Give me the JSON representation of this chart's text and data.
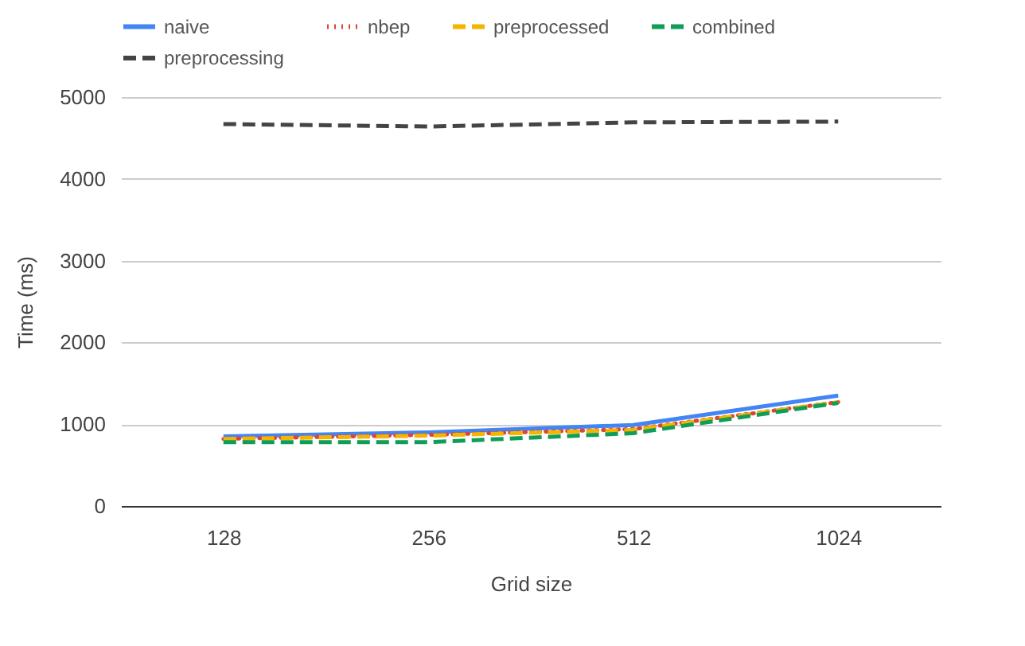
{
  "chart_data": {
    "type": "line",
    "xlabel": "Grid size",
    "ylabel": "Time (ms)",
    "categories": [
      "128",
      "256",
      "512",
      "1024"
    ],
    "series": [
      {
        "name": "naive",
        "color": "#4285f4",
        "line_style": "solid",
        "values": [
          850,
          900,
          990,
          1350
        ]
      },
      {
        "name": "nbep",
        "color": "#db4437",
        "line_style": "dotted",
        "values": [
          820,
          870,
          940,
          1270
        ]
      },
      {
        "name": "preprocessed",
        "color": "#f4b400",
        "line_style": "dashed",
        "values": [
          820,
          860,
          930,
          1270
        ]
      },
      {
        "name": "combined",
        "color": "#0f9d58",
        "line_style": "dashed",
        "values": [
          780,
          780,
          890,
          1260
        ]
      },
      {
        "name": "preprocessing",
        "color": "#444444",
        "line_style": "dashed",
        "values": [
          4670,
          4640,
          4690,
          4700
        ]
      }
    ],
    "ylim": [
      0,
      5000
    ],
    "yticks": [
      0,
      1000,
      2000,
      3000,
      4000,
      5000
    ],
    "grid": "y",
    "legend": "top",
    "marker": "none"
  }
}
